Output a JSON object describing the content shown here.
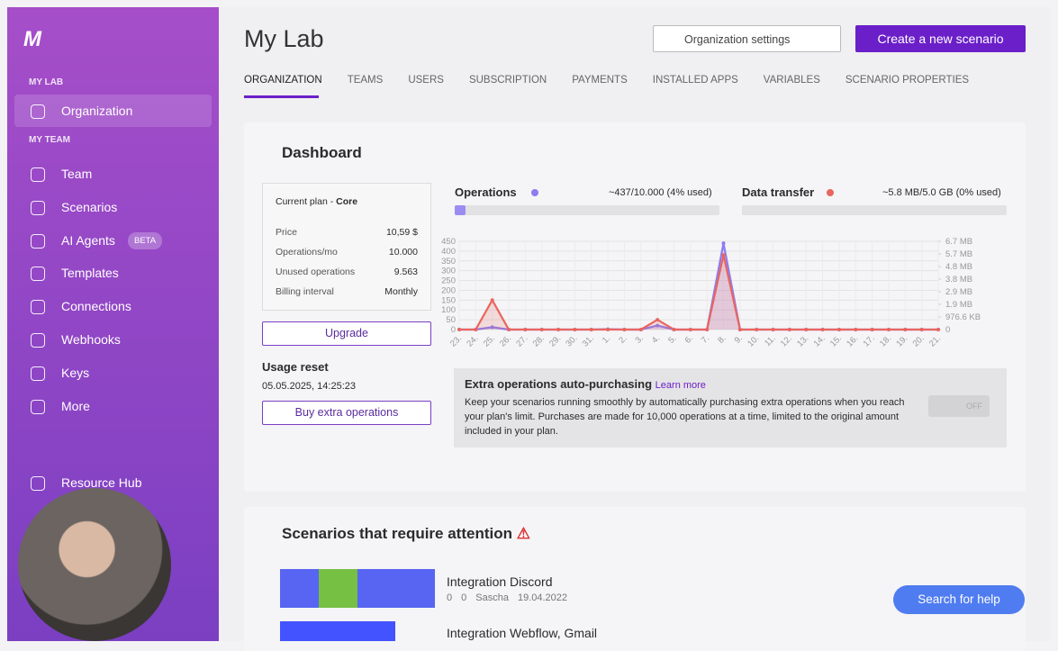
{
  "sidebar": {
    "org_label": "MY LAB",
    "org_item": "Organization",
    "team_label": "MY TEAM",
    "items": [
      "Team",
      "Scenarios",
      "AI Agents",
      "Templates",
      "Connections",
      "Webhooks",
      "Keys",
      "More"
    ],
    "badge": "BETA",
    "resource_hub": "Resource Hub"
  },
  "header": {
    "title": "My Lab",
    "settings_button": "Organization settings",
    "create_button": "Create a new scenario",
    "tabs": [
      "ORGANIZATION",
      "TEAMS",
      "USERS",
      "SUBSCRIPTION",
      "PAYMENTS",
      "INSTALLED APPS",
      "VARIABLES",
      "SCENARIO PROPERTIES"
    ]
  },
  "dashboard": {
    "title": "Dashboard",
    "plan_label": "Current plan - ",
    "plan_name": "Core",
    "plan_rows": [
      [
        "Price",
        "10,59 $"
      ],
      [
        "Operations/mo",
        "10.000"
      ],
      [
        "Unused operations",
        "9.563"
      ],
      [
        "Billing interval",
        "Monthly"
      ]
    ],
    "upgrade": "Upgrade",
    "usage_reset_title": "Usage reset",
    "usage_reset_date": "05.05.2025, 14:25:23",
    "buy_button": "Buy extra operations",
    "operations_title": "Operations",
    "operations_usage": "~437/10.000 (4% used)",
    "transfer_title": "Data transfer",
    "transfer_usage": "~5.8 MB/5.0 GB (0% used)",
    "auto_title": "Extra operations auto-purchasing",
    "auto_link": "Learn more",
    "auto_text": "Keep your scenarios running smoothly by automatically purchasing extra operations when you reach your plan's limit. Purchases are made for 10,000 operations at a time, limited to the original amount included in your plan.",
    "toggle": "OFF"
  },
  "chart_data": {
    "type": "line",
    "categories": [
      "23.",
      "24.",
      "25.",
      "26.",
      "27.",
      "28.",
      "29.",
      "30.",
      "31.",
      "1.",
      "2.",
      "3.",
      "4.",
      "5.",
      "6.",
      "7.",
      "8.",
      "9.",
      "10.",
      "11.",
      "12.",
      "13.",
      "14.",
      "15.",
      "16.",
      "17.",
      "18.",
      "19.",
      "20.",
      "21."
    ],
    "series": [
      {
        "name": "Operations",
        "color": "#8c7cf0",
        "values": [
          0,
          0,
          12,
          0,
          0,
          0,
          0,
          0,
          0,
          2,
          0,
          0,
          20,
          0,
          0,
          0,
          440,
          0,
          0,
          0,
          0,
          0,
          0,
          0,
          0,
          0,
          0,
          0,
          0,
          0
        ]
      },
      {
        "name": "Data transfer",
        "color": "#e8665f",
        "axis": "y2",
        "values": [
          0,
          0,
          2279,
          0,
          0,
          0,
          0,
          0,
          0,
          0,
          0,
          0,
          760,
          0,
          0,
          0,
          5772,
          0,
          0,
          0,
          0,
          0,
          0,
          0,
          0,
          0,
          0,
          0,
          0,
          0
        ]
      }
    ],
    "ylim": [
      0,
      450
    ],
    "yticks": [
      0,
      50,
      100,
      150,
      200,
      250,
      300,
      350,
      400,
      450
    ],
    "y2lim": [
      0,
      6835.9
    ],
    "y2ticks": [
      0,
      {
        "value": 976.6,
        "label": "976.6 KB"
      },
      {
        "value": 1953.1,
        "label": "1.9 MB"
      },
      {
        "value": 2929.7,
        "label": "2.9 MB"
      },
      {
        "value": 3906.3,
        "label": "3.8 MB"
      },
      {
        "value": 4882.8,
        "label": "4.8 MB"
      },
      {
        "value": 5859.4,
        "label": "5.7 MB"
      },
      {
        "value": 6835.9,
        "label": "6.7 MB"
      }
    ],
    "grid": true
  },
  "attention": {
    "title": "Scenarios that require attention",
    "scenarios": [
      {
        "name": "Integration Discord",
        "operations": "0",
        "errors": "0",
        "owner": "Sascha",
        "date": "19.04.2022"
      },
      {
        "name": "Integration Webflow, Gmail"
      }
    ]
  },
  "help_button": "Search for help"
}
